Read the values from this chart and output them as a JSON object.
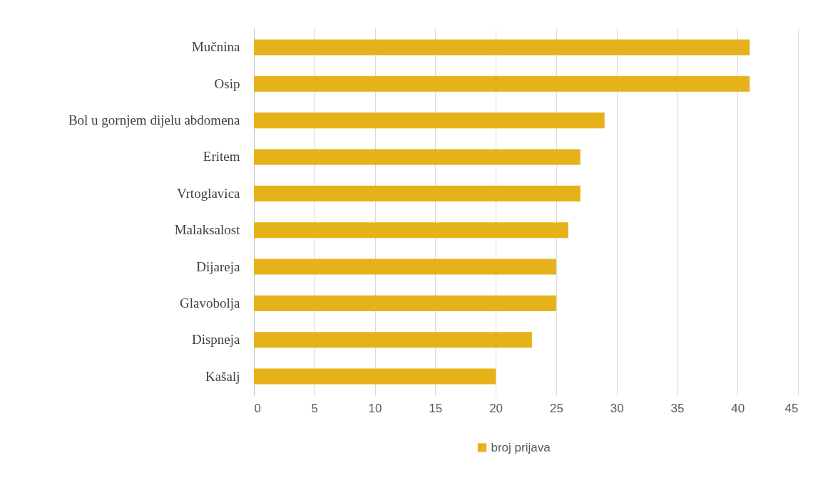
{
  "chart_data": {
    "type": "bar",
    "orientation": "horizontal",
    "categories": [
      "Mučnina",
      "Osip",
      "Bol u gornjem dijelu abdomena",
      "Eritem",
      "Vrtoglavica",
      "Malaksalost",
      "Dijareja",
      "Glavobolja",
      "Dispneja",
      "Kašalj"
    ],
    "series": [
      {
        "name": "broj prijava",
        "color": "#e6b219",
        "values": [
          41,
          41,
          29,
          27,
          27,
          26,
          25,
          25,
          23,
          20
        ]
      }
    ],
    "xlim": [
      0,
      45
    ],
    "xticks": [
      0,
      5,
      10,
      15,
      20,
      25,
      30,
      35,
      40,
      45
    ],
    "grid": "x",
    "legend": "bottom"
  }
}
